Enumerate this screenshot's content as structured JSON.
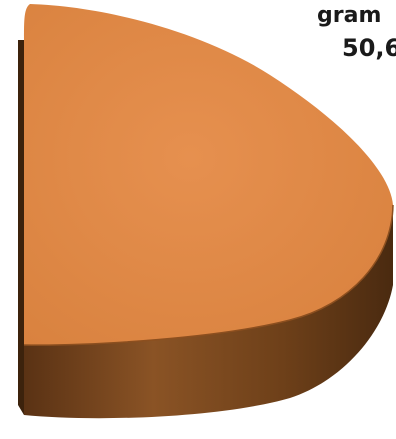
{
  "chart_data": {
    "type": "pie",
    "style": "3d",
    "series": [
      {
        "label_line1": "gram",
        "label_line2": "50,6",
        "value": 50.6,
        "color": "#de8440",
        "side_color": "#6b3c18"
      }
    ]
  }
}
